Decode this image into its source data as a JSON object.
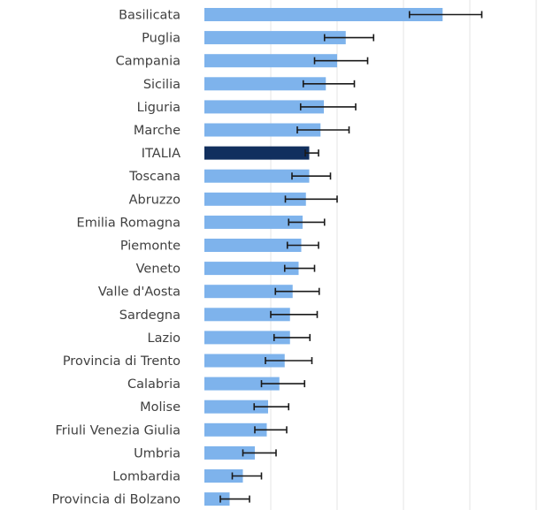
{
  "chart_data": {
    "type": "bar",
    "orientation": "horizontal",
    "title": "",
    "xlabel": "",
    "ylabel": "",
    "xlim": [
      0,
      5.0
    ],
    "grid": true,
    "categories": [
      "Basilicata",
      "Puglia",
      "Campania",
      "Sicilia",
      "Liguria",
      "Marche",
      "ITALIA",
      "Toscana",
      "Abruzzo",
      "Emilia Romagna",
      "Piemonte",
      "Veneto",
      "Valle d'Aosta",
      "Sardegna",
      "Lazio",
      "Provincia di Trento",
      "Calabria",
      "Molise",
      "Friuli Venezia Giulia",
      "Umbria",
      "Lombardia",
      "Provincia di Bolzano"
    ],
    "values": [
      3.59,
      2.13,
      2.0,
      1.83,
      1.8,
      1.75,
      1.58,
      1.58,
      1.53,
      1.48,
      1.46,
      1.42,
      1.33,
      1.29,
      1.29,
      1.21,
      1.13,
      0.96,
      0.94,
      0.76,
      0.58,
      0.38
    ],
    "error_low": [
      3.09,
      1.81,
      1.66,
      1.49,
      1.45,
      1.4,
      1.52,
      1.32,
      1.22,
      1.27,
      1.25,
      1.21,
      1.07,
      1.0,
      1.05,
      0.92,
      0.86,
      0.75,
      0.76,
      0.58,
      0.42,
      0.24
    ],
    "error_high": [
      4.18,
      2.55,
      2.46,
      2.26,
      2.28,
      2.18,
      1.72,
      1.9,
      2.0,
      1.81,
      1.72,
      1.66,
      1.73,
      1.7,
      1.59,
      1.62,
      1.51,
      1.27,
      1.24,
      1.08,
      0.86,
      0.68
    ],
    "highlight": "ITALIA",
    "colors": {
      "bar": "#7eb3ec",
      "highlight": "#112f5e",
      "error_bar": "#1a1a1a",
      "grid": "#e6e6e6",
      "label": "#404040"
    }
  }
}
